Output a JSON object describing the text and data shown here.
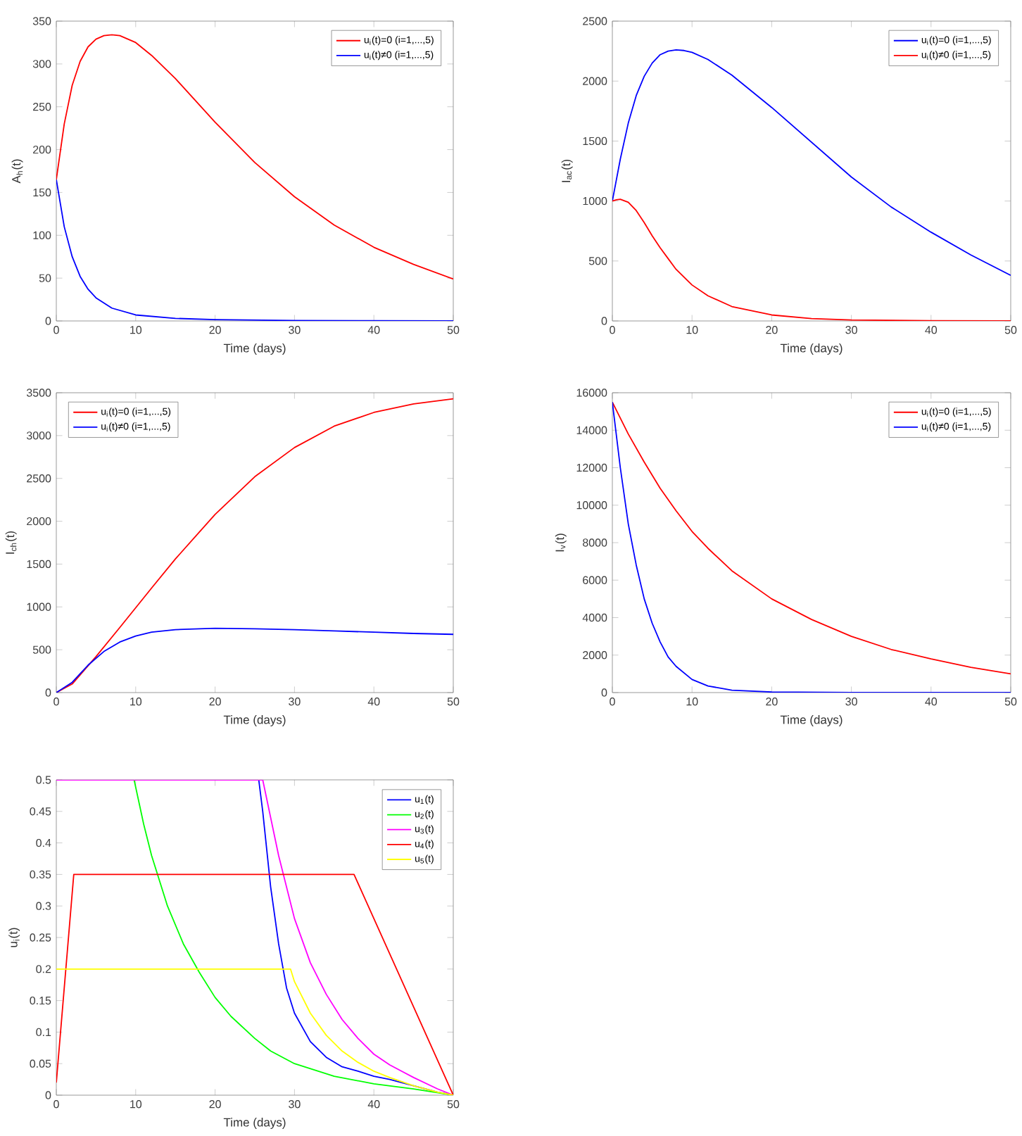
{
  "chart_data": [
    {
      "type": "line",
      "xlabel": "Time (days)",
      "ylabel": "A$_{h}$(t)",
      "xlim": [
        0,
        50
      ],
      "ylim": [
        0,
        350
      ],
      "xticks": [
        0,
        10,
        20,
        30,
        40,
        50
      ],
      "yticks": [
        0,
        50,
        100,
        150,
        200,
        250,
        300,
        350
      ],
      "legend": "top right",
      "series": [
        {
          "name": "u$_{i}$(t)=0 (i=1,...,5)",
          "color": "#ff0000",
          "x": [
            0,
            1,
            2,
            3,
            4,
            5,
            6,
            7,
            8,
            10,
            12,
            15,
            20,
            25,
            30,
            35,
            40,
            45,
            50
          ],
          "values": [
            165,
            230,
            275,
            303,
            320,
            329,
            333,
            334,
            333,
            325,
            310,
            283,
            232,
            185,
            145,
            112,
            86,
            66,
            49
          ]
        },
        {
          "name": "u$_{i}$(t)≠0 (i=1,...,5)",
          "color": "#0000ff",
          "x": [
            0,
            1,
            2,
            3,
            4,
            5,
            7,
            10,
            15,
            20,
            30,
            40,
            50
          ],
          "values": [
            165,
            110,
            75,
            52,
            37,
            27,
            15,
            7,
            3,
            1.5,
            0.5,
            0.2,
            0.1
          ]
        }
      ]
    },
    {
      "type": "line",
      "xlabel": "Time (days)",
      "ylabel": "I$_{ac}$(t)",
      "xlim": [
        0,
        50
      ],
      "ylim": [
        0,
        2500
      ],
      "xticks": [
        0,
        10,
        20,
        30,
        40,
        50
      ],
      "yticks": [
        0,
        500,
        1000,
        1500,
        2000,
        2500
      ],
      "legend": "top right",
      "series": [
        {
          "name": "u$_{i}$(t)=0 (i=1,...,5)",
          "color": "#0000ff",
          "x": [
            0,
            1,
            2,
            3,
            4,
            5,
            6,
            7,
            8,
            9,
            10,
            12,
            15,
            20,
            25,
            30,
            35,
            40,
            45,
            50
          ],
          "values": [
            1000,
            1350,
            1650,
            1880,
            2040,
            2150,
            2220,
            2250,
            2260,
            2255,
            2240,
            2180,
            2050,
            1780,
            1490,
            1200,
            950,
            740,
            550,
            380
          ]
        },
        {
          "name": "u$_{i}$(t)≠0 (i=1,...,5)",
          "color": "#ff0000",
          "x": [
            0,
            0.5,
            1,
            2,
            3,
            4,
            5,
            6,
            7,
            8,
            10,
            12,
            15,
            20,
            25,
            30,
            40,
            50
          ],
          "values": [
            1000,
            1010,
            1015,
            990,
            920,
            820,
            710,
            610,
            520,
            430,
            300,
            210,
            120,
            50,
            20,
            8,
            2,
            0
          ]
        }
      ]
    },
    {
      "type": "line",
      "xlabel": "Time (days)",
      "ylabel": "I$_{ch}$(t)",
      "xlim": [
        0,
        50
      ],
      "ylim": [
        0,
        3500
      ],
      "xticks": [
        0,
        10,
        20,
        30,
        40,
        50
      ],
      "yticks": [
        0,
        500,
        1000,
        1500,
        2000,
        2500,
        3000,
        3500
      ],
      "legend": "top left",
      "series": [
        {
          "name": "u$_{i}$(t)=0 (i=1,...,5)",
          "color": "#ff0000",
          "x": [
            0,
            2,
            5,
            8,
            10,
            12,
            15,
            20,
            25,
            30,
            35,
            40,
            45,
            50
          ],
          "values": [
            0,
            100,
            420,
            760,
            990,
            1220,
            1560,
            2080,
            2520,
            2860,
            3110,
            3270,
            3370,
            3430
          ]
        },
        {
          "name": "u$_{i}$(t)≠0 (i=1,...,5)",
          "color": "#0000ff",
          "x": [
            0,
            2,
            4,
            6,
            8,
            10,
            12,
            15,
            20,
            25,
            30,
            35,
            40,
            45,
            50
          ],
          "values": [
            0,
            120,
            320,
            480,
            590,
            660,
            705,
            735,
            750,
            745,
            735,
            720,
            705,
            690,
            680
          ]
        }
      ]
    },
    {
      "type": "line",
      "xlabel": "Time (days)",
      "ylabel": "I$_{v}$(t)",
      "xlim": [
        0,
        50
      ],
      "ylim": [
        0,
        16000
      ],
      "xticks": [
        0,
        10,
        20,
        30,
        40,
        50
      ],
      "yticks": [
        0,
        2000,
        4000,
        6000,
        8000,
        10000,
        12000,
        14000,
        16000
      ],
      "legend": "top right",
      "series": [
        {
          "name": "u$_{i}$(t)=0 (i=1,...,5)",
          "color": "#ff0000",
          "x": [
            0,
            2,
            4,
            6,
            8,
            10,
            12,
            15,
            20,
            25,
            30,
            35,
            40,
            45,
            50
          ],
          "values": [
            15500,
            13800,
            12300,
            10900,
            9700,
            8600,
            7700,
            6500,
            5000,
            3900,
            3000,
            2300,
            1800,
            1350,
            1000
          ]
        },
        {
          "name": "u$_{i}$(t)≠0 (i=1,...,5)",
          "color": "#0000ff",
          "x": [
            0,
            1,
            2,
            3,
            4,
            5,
            6,
            7,
            8,
            10,
            12,
            15,
            20,
            30,
            50
          ],
          "values": [
            15500,
            12000,
            9000,
            6800,
            5000,
            3700,
            2700,
            1900,
            1400,
            700,
            350,
            130,
            30,
            5,
            0
          ]
        }
      ]
    },
    {
      "type": "line",
      "xlabel": "Time (days)",
      "ylabel": "u$_{i}$(t)",
      "xlim": [
        0,
        50
      ],
      "ylim": [
        0,
        0.5
      ],
      "xticks": [
        0,
        10,
        20,
        30,
        40,
        50
      ],
      "yticks": [
        0,
        0.05,
        0.1,
        0.15,
        0.2,
        0.25,
        0.3,
        0.35,
        0.4,
        0.45,
        0.5
      ],
      "legend": "top right",
      "series": [
        {
          "name": "u$_{1}$(t)",
          "color": "#0000ff",
          "x": [
            0,
            25.5,
            26,
            27,
            28,
            29,
            30,
            32,
            34,
            36,
            38,
            40,
            42,
            45,
            48,
            50
          ],
          "values": [
            0.5,
            0.5,
            0.45,
            0.33,
            0.24,
            0.17,
            0.13,
            0.085,
            0.06,
            0.045,
            0.038,
            0.03,
            0.025,
            0.015,
            0.005,
            0
          ]
        },
        {
          "name": "u$_{2}$(t)",
          "color": "#00ff00",
          "x": [
            0,
            9.8,
            11,
            12,
            14,
            16,
            18,
            20,
            22,
            25,
            27,
            30,
            35,
            40,
            45,
            50
          ],
          "values": [
            0.5,
            0.5,
            0.43,
            0.38,
            0.3,
            0.24,
            0.195,
            0.155,
            0.125,
            0.09,
            0.07,
            0.05,
            0.03,
            0.018,
            0.01,
            0
          ]
        },
        {
          "name": "u$_{3}$(t)",
          "color": "#ff00ff",
          "x": [
            0,
            26,
            27,
            28,
            30,
            32,
            34,
            36,
            38,
            40,
            42,
            45,
            48,
            50
          ],
          "values": [
            0.5,
            0.5,
            0.44,
            0.38,
            0.28,
            0.21,
            0.16,
            0.12,
            0.09,
            0.065,
            0.048,
            0.028,
            0.01,
            0
          ]
        },
        {
          "name": "u$_{4}$(t)",
          "color": "#ff0000",
          "x": [
            0,
            2.2,
            37.5,
            50
          ],
          "values": [
            0.02,
            0.35,
            0.35,
            0
          ]
        },
        {
          "name": "u$_{5}$(t)",
          "color": "#ffff00",
          "x": [
            0,
            29.5,
            30,
            32,
            34,
            36,
            38,
            40,
            42,
            45,
            48,
            50
          ],
          "values": [
            0.2,
            0.2,
            0.18,
            0.13,
            0.095,
            0.07,
            0.052,
            0.038,
            0.028,
            0.015,
            0.005,
            0
          ]
        }
      ]
    }
  ]
}
